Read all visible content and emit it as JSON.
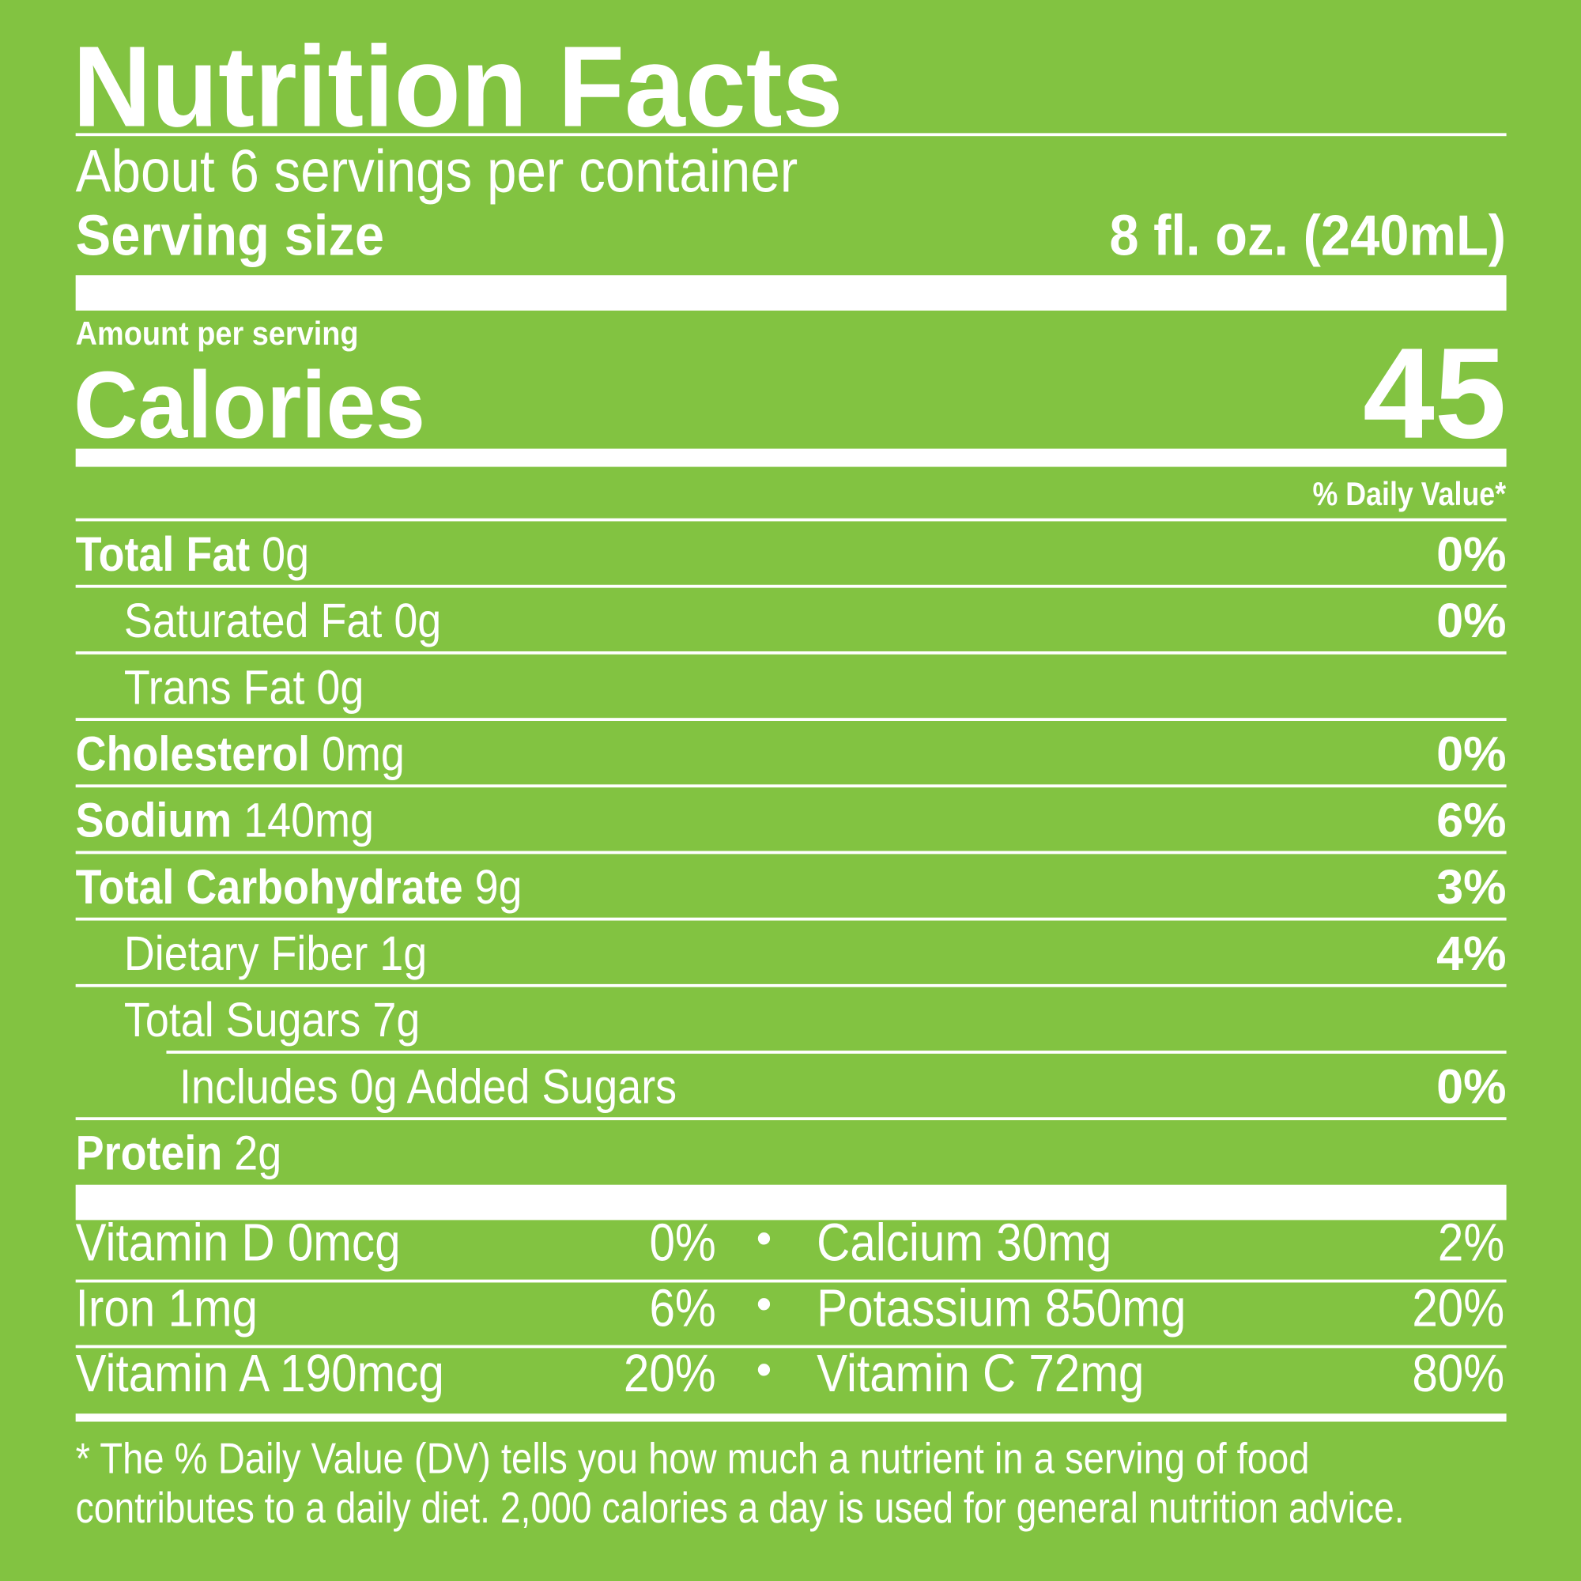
{
  "header": {
    "title": "Nutrition Facts",
    "servings": "About 6 servings per container",
    "serving_size_label": "Serving size",
    "serving_size_value": "8 fl. oz. (240mL)"
  },
  "calories": {
    "amount_label": "Amount per serving",
    "label": "Calories",
    "value": "45"
  },
  "dv_header": "% Daily Value*",
  "nutrients": [
    {
      "name": "Total Fat",
      "amount": "0g",
      "dv": "0%",
      "bold": true,
      "indent": 0
    },
    {
      "name": "Saturated Fat",
      "amount": "0g",
      "dv": "0%",
      "bold": false,
      "indent": 1
    },
    {
      "name": "Trans Fat",
      "amount": "0g",
      "dv": "",
      "bold": false,
      "indent": 1
    },
    {
      "name": "Cholesterol",
      "amount": "0mg",
      "dv": "0%",
      "bold": true,
      "indent": 0
    },
    {
      "name": "Sodium",
      "amount": "140mg",
      "dv": "6%",
      "bold": true,
      "indent": 0
    },
    {
      "name": "Total Carbohydrate",
      "amount": "9g",
      "dv": "3%",
      "bold": true,
      "indent": 0
    },
    {
      "name": "Dietary Fiber",
      "amount": "1g",
      "dv": "4%",
      "bold": false,
      "indent": 1
    },
    {
      "name": "Total Sugars",
      "amount": "7g",
      "dv": "",
      "bold": false,
      "indent": 1
    },
    {
      "name": "Includes 0g Added Sugars",
      "amount": "",
      "dv": "0%",
      "bold": false,
      "indent": 2
    },
    {
      "name": "Protein",
      "amount": "2g",
      "dv": "",
      "bold": true,
      "indent": 0
    }
  ],
  "vitamins": [
    {
      "left": "Vitamin D 0mcg",
      "left_dv": "0%",
      "right": "Calcium 30mg",
      "right_dv": "2%"
    },
    {
      "left": "Iron 1mg",
      "left_dv": "6%",
      "right": "Potassium 850mg",
      "right_dv": "20%"
    },
    {
      "left": "Vitamin A 190mcg",
      "left_dv": "20%",
      "right": "Vitamin C 72mg",
      "right_dv": "80%"
    }
  ],
  "bullet": "•",
  "footnote": [
    "* The % Daily Value (DV) tells you how much a nutrient in a serving of food",
    "contributes to a daily diet. 2,000 calories a day is used for general nutrition advice."
  ],
  "colors": {
    "background": "#82c341",
    "text": "#ffffff"
  }
}
